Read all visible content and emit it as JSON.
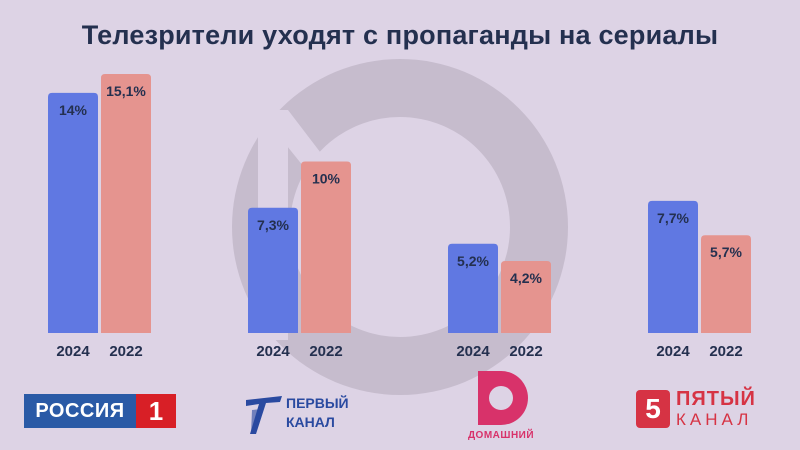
{
  "title": "Телезрители уходят с пропаганды на сериалы",
  "colors": {
    "background": "#ddd3e5",
    "bar_2024": "#6078e2",
    "bar_2022": "#e5948f",
    "text": "#24304f",
    "watermark": "#c6bccd"
  },
  "chart_data": {
    "type": "bar",
    "title": "Телезрители уходят с пропаганды на сериалы",
    "xlabel": "",
    "ylabel": "",
    "grid": false,
    "groups": [
      "Россия 1",
      "Первый канал",
      "Домашний",
      "Пятый канал"
    ],
    "series_labels": [
      "2024",
      "2022"
    ],
    "values": [
      [
        14,
        15.1
      ],
      [
        7.3,
        10
      ],
      [
        5.2,
        4.2
      ],
      [
        7.7,
        5.7
      ]
    ],
    "value_labels": [
      [
        "14%",
        "15,1%"
      ],
      [
        "7,3%",
        "10%"
      ],
      [
        "5,2%",
        "4,2%"
      ],
      [
        "7,7%",
        "5,7%"
      ]
    ],
    "ylim": [
      0,
      15.1
    ]
  },
  "logos": {
    "rossiya_word": "РОССИЯ",
    "rossiya_num": "1",
    "perviy_line1": "ПЕРВЫЙ",
    "perviy_line2": "КАНАЛ",
    "domashniy": "ДОМАШНИЙ",
    "pyatiy_num": "5",
    "pyatiy_line1": "ПЯТЫЙ",
    "pyatiy_line2": "КАНАЛ"
  }
}
